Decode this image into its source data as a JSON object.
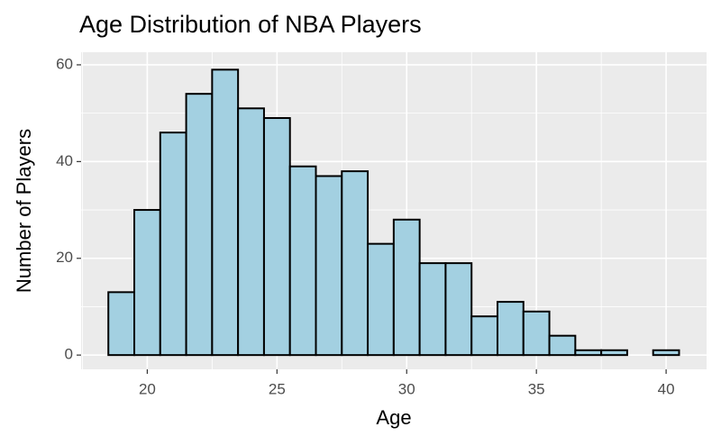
{
  "chart_data": {
    "type": "histogram",
    "title": "Age Distribution of NBA Players",
    "xlabel": "Age",
    "ylabel": "Number of Players",
    "bins": [
      18.5,
      19.5,
      20.5,
      21.5,
      22.5,
      23.5,
      24.5,
      25.5,
      26.5,
      27.5,
      28.5,
      29.5,
      30.5,
      31.5,
      32.5,
      33.5,
      34.5,
      35.5,
      36.5,
      37.5,
      38.5,
      39.5,
      40.5
    ],
    "values": [
      13,
      30,
      46,
      54,
      59,
      51,
      49,
      39,
      37,
      38,
      23,
      28,
      19,
      19,
      8,
      11,
      9,
      4,
      1,
      1,
      0,
      1
    ],
    "color": "#a3d0e1",
    "edgecolor": "#000000",
    "xlim": [
      17.45,
      41.56
    ],
    "ylim": [
      -2.95,
      62.6
    ],
    "xticks": [
      20,
      25,
      30,
      35,
      40
    ],
    "yticks": [
      0,
      20,
      40,
      60
    ],
    "x_minor_ticks": [
      17.5,
      22.5,
      27.5,
      32.5,
      37.5
    ],
    "y_minor_ticks": [
      10,
      30,
      50
    ],
    "grid": true
  }
}
